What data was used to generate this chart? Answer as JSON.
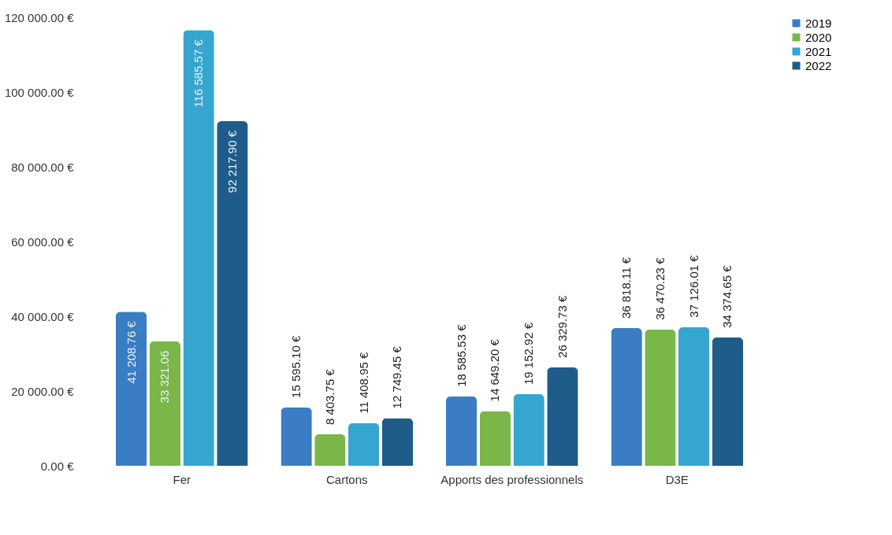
{
  "chart_data": {
    "type": "bar",
    "categories": [
      "Fer",
      "Cartons",
      "Apports des professionnels",
      "D3E"
    ],
    "series": [
      {
        "name": "2019",
        "color": "#3a7dc4",
        "values": [
          41208.76,
          15595.1,
          18585.53,
          36818.11
        ],
        "value_labels": [
          "41 208.76 €",
          "15 595.10 €",
          "18 585.53 €",
          "36 818.11 €"
        ]
      },
      {
        "name": "2020",
        "color": "#7ab648",
        "values": [
          33321.06,
          8403.75,
          14649.2,
          36470.23
        ],
        "value_labels": [
          "33 321.06",
          "8 403.75 €",
          "14 649.20 €",
          "36 470.23 €"
        ]
      },
      {
        "name": "2021",
        "color": "#35a6cf",
        "values": [
          116585.57,
          11408.95,
          19152.92,
          37126.01
        ],
        "value_labels": [
          "116 585.57 €",
          "11 408.95 €",
          "19 152.92 €",
          "37 126.01 €"
        ]
      },
      {
        "name": "2022",
        "color": "#1f5c8a",
        "values": [
          92217.9,
          12749.45,
          26329.73,
          34374.65
        ],
        "value_labels": [
          "92 217.90 €",
          "12 749.45 €",
          "26 329.73 €",
          "34 374.65 €"
        ]
      }
    ],
    "ylim": [
      0,
      120000
    ],
    "yticks": [
      {
        "value": 0,
        "label": "0.00 €"
      },
      {
        "value": 20000,
        "label": "20 000.00 €"
      },
      {
        "value": 40000,
        "label": "40 000.00 €"
      },
      {
        "value": 60000,
        "label": "60 000.00 €"
      },
      {
        "value": 80000,
        "label": "80 000.00 €"
      },
      {
        "value": 100000,
        "label": "100 000.00 €"
      },
      {
        "value": 120000,
        "label": "120 000.00 €"
      }
    ],
    "grid": false,
    "legend": "right"
  }
}
